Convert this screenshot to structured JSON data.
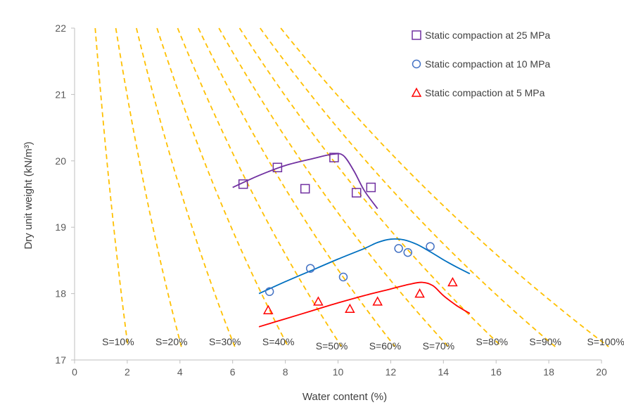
{
  "chart_data": {
    "type": "scatter",
    "xlabel": "Water content (%)",
    "ylabel": "Dry unit weight (kN/m³)",
    "xlim": [
      0,
      20
    ],
    "ylim": [
      17,
      22
    ],
    "x_ticks": [
      0,
      2,
      4,
      6,
      8,
      10,
      12,
      14,
      16,
      18,
      20
    ],
    "y_ticks": [
      17,
      18,
      19,
      20,
      21,
      22
    ],
    "legend_position": "top-right",
    "series": [
      {
        "name": "Static compaction at 25 MPa",
        "marker": "square",
        "color": "#7030a0",
        "points": [
          [
            6.4,
            19.65
          ],
          [
            7.7,
            19.9
          ],
          [
            8.75,
            19.58
          ],
          [
            9.85,
            20.05
          ],
          [
            10.7,
            19.52
          ],
          [
            11.25,
            19.6
          ]
        ],
        "fit": [
          [
            6.0,
            19.6
          ],
          [
            7.0,
            19.78
          ],
          [
            8.0,
            19.93
          ],
          [
            9.0,
            20.03
          ],
          [
            9.8,
            20.1
          ],
          [
            10.2,
            20.08
          ],
          [
            10.6,
            19.85
          ],
          [
            11.0,
            19.55
          ],
          [
            11.5,
            19.28
          ]
        ]
      },
      {
        "name": "Static compaction at 10 MPa",
        "marker": "circle",
        "color": "#0070c0",
        "points": [
          [
            7.4,
            18.03
          ],
          [
            8.95,
            18.38
          ],
          [
            10.2,
            18.25
          ],
          [
            12.3,
            18.68
          ],
          [
            12.65,
            18.62
          ],
          [
            13.5,
            18.71
          ]
        ],
        "fit": [
          [
            7.0,
            18.0
          ],
          [
            8.0,
            18.18
          ],
          [
            9.0,
            18.35
          ],
          [
            10.0,
            18.52
          ],
          [
            11.0,
            18.68
          ],
          [
            11.5,
            18.77
          ],
          [
            12.0,
            18.82
          ],
          [
            12.5,
            18.81
          ],
          [
            13.0,
            18.74
          ],
          [
            13.5,
            18.63
          ],
          [
            14.0,
            18.51
          ],
          [
            14.5,
            18.4
          ],
          [
            15.0,
            18.3
          ]
        ]
      },
      {
        "name": "Static compaction at 5 MPa",
        "marker": "triangle",
        "color": "#ff0000",
        "points": [
          [
            7.35,
            17.75
          ],
          [
            9.25,
            17.88
          ],
          [
            10.45,
            17.77
          ],
          [
            11.5,
            17.88
          ],
          [
            13.1,
            18.0
          ],
          [
            14.35,
            18.17
          ]
        ],
        "fit": [
          [
            7.0,
            17.5
          ],
          [
            8.0,
            17.62
          ],
          [
            9.0,
            17.74
          ],
          [
            10.0,
            17.86
          ],
          [
            11.0,
            17.97
          ],
          [
            12.0,
            18.07
          ],
          [
            12.7,
            18.14
          ],
          [
            13.2,
            18.17
          ],
          [
            13.6,
            18.12
          ],
          [
            14.0,
            17.97
          ],
          [
            14.5,
            17.82
          ],
          [
            15.0,
            17.7
          ]
        ]
      }
    ],
    "saturation_lines": {
      "color": "#ffc000",
      "style": "dashed",
      "specific_gravity": 2.72,
      "gamma_w": 9.81,
      "degrees": [
        10,
        20,
        30,
        40,
        50,
        60,
        70,
        80,
        90,
        100
      ],
      "labels": [
        "S=10%",
        "S=20%",
        "S=30%",
        "S=40%",
        "S=50%",
        "S=60%",
        "S=70%",
        "S=80%",
        "S=90%",
        "S=100%"
      ]
    }
  }
}
